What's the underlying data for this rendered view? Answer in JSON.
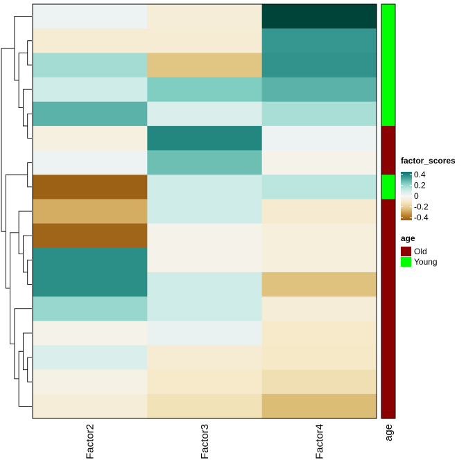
{
  "chart_data": {
    "type": "heatmap",
    "columns": [
      "Factor2",
      "Factor3",
      "Factor4"
    ],
    "row_count": 17,
    "values": [
      [
        0.02,
        -0.07,
        0.58
      ],
      [
        -0.08,
        -0.08,
        0.36
      ],
      [
        0.18,
        -0.23,
        0.37
      ],
      [
        0.1,
        0.24,
        0.3
      ],
      [
        0.3,
        0.07,
        0.17
      ],
      [
        -0.05,
        0.4,
        0.02
      ],
      [
        0.02,
        0.27,
        -0.03
      ],
      [
        -0.44,
        0.1,
        0.14
      ],
      [
        -0.28,
        0.1,
        -0.09
      ],
      [
        -0.43,
        -0.03,
        -0.06
      ],
      [
        0.38,
        -0.03,
        -0.06
      ],
      [
        0.38,
        0.1,
        -0.24
      ],
      [
        0.2,
        0.1,
        -0.07
      ],
      [
        -0.03,
        0.03,
        -0.1
      ],
      [
        0.07,
        -0.08,
        -0.11
      ],
      [
        -0.04,
        -0.1,
        -0.15
      ],
      [
        -0.07,
        -0.14,
        -0.25
      ]
    ],
    "annotation": {
      "label": "age",
      "values": [
        "Young",
        "Young",
        "Young",
        "Young",
        "Young",
        "Old",
        "Old",
        "Young",
        "Old",
        "Old",
        "Old",
        "Old",
        "Old",
        "Old",
        "Old",
        "Old",
        "Old"
      ]
    },
    "legend_scale": {
      "title": "factor_scores",
      "ticks": [
        0.4,
        0.2,
        0,
        -0.2,
        -0.4
      ],
      "tick_labels": [
        "0.4",
        "0.2",
        "0",
        "-0.2",
        "-0.4"
      ],
      "colors": [
        "#003c30",
        "#01665e",
        "#35978f",
        "#80cdc1",
        "#c7eae5",
        "#f5f5f5",
        "#f6e8c3",
        "#dfc27d",
        "#bf812d",
        "#8c510a",
        "#543005"
      ],
      "range": [
        -0.6,
        0.6
      ]
    },
    "legend_age": {
      "title": "age",
      "items": [
        {
          "label": "Old",
          "color": "#8b0000"
        },
        {
          "label": "Young",
          "color": "#00ff00"
        }
      ]
    },
    "dendrogram": {
      "merges": [
        [
          1,
          2
        ],
        [
          4,
          5
        ],
        [
          3,
          "m1"
        ],
        [
          "m0",
          "m2"
        ],
        [
          0,
          "m3"
        ],
        [
          6,
          7
        ],
        [
          10,
          11
        ],
        [
          9,
          "m6"
        ],
        [
          8,
          "m7"
        ],
        [
          14,
          15
        ],
        [
          13,
          "m9"
        ],
        [
          16,
          "m10"
        ],
        [
          12,
          "m11"
        ],
        [
          "m8",
          "m12"
        ],
        [
          "m5",
          "m13"
        ],
        [
          "m4",
          "m14"
        ]
      ]
    }
  }
}
